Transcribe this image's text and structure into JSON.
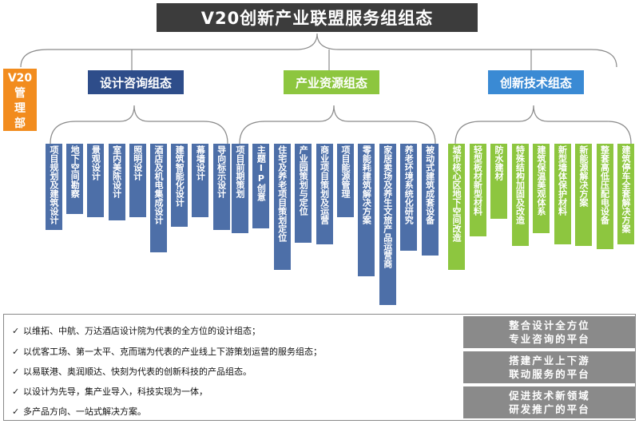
{
  "title": "V20创新产业联盟服务组组态",
  "management": "V20管理部",
  "groups": {
    "design": {
      "label": "设计咨询组态",
      "items": [
        "项目规划及建筑设计",
        "地下空间勘察",
        "景观设计",
        "室内美陈设计",
        "照明设计",
        "酒店及机电集成设计",
        "建筑智能化设计",
        "幕墙设计",
        "导向标示设计"
      ]
    },
    "industry": {
      "label": "产业资源组态",
      "items": [
        "项目前期策划",
        "主题IP创意",
        "住宅及养老项目策划定位",
        "产业园策划与定位",
        "商业项目策划及运营",
        "项目能源管理",
        "零能耗建筑解决方案",
        "家居卖场及养生文旅产品运营商",
        "养老环境系统化研究",
        "被动式建筑成套设备"
      ]
    },
    "tech": {
      "label": "创新技术组态",
      "items": [
        "城市核心区地下空间改造",
        "轻型板材新型材料",
        "防水建材",
        "特殊结构加固及改造",
        "建筑保温美观体系",
        "新型墙体保护材料",
        "新能源解决方案",
        "整套高低压配电设备",
        "建筑停车全套解决方案"
      ]
    }
  },
  "summary_lines": [
    "以维拓、中航、万达酒店设计院为代表的全方位的设计组态；",
    "以优客工场、第一太平、克而瑞为代表的产业线上下游策划运营的服务组态；",
    "以易联港、奥润顺达、快刻为代表的创新科技的产品组态。",
    "以设计为先导，集产业导入，科技实现为一体，",
    "多产品方向、一站式解决方案。"
  ],
  "platforms": [
    [
      "整合设计全方位",
      "专业咨询的平台"
    ],
    [
      "搭建产业上下游",
      "联动服务的平台"
    ],
    [
      "促进技术新领域",
      "研发推广的平台"
    ]
  ],
  "check_mark": "✓",
  "colors": {
    "title_bg": "#3c3c3c",
    "mgmt": "#f28c1e",
    "blue": "#2e4d8a",
    "green": "#8dc63f",
    "gray": "#8a8a8a"
  }
}
